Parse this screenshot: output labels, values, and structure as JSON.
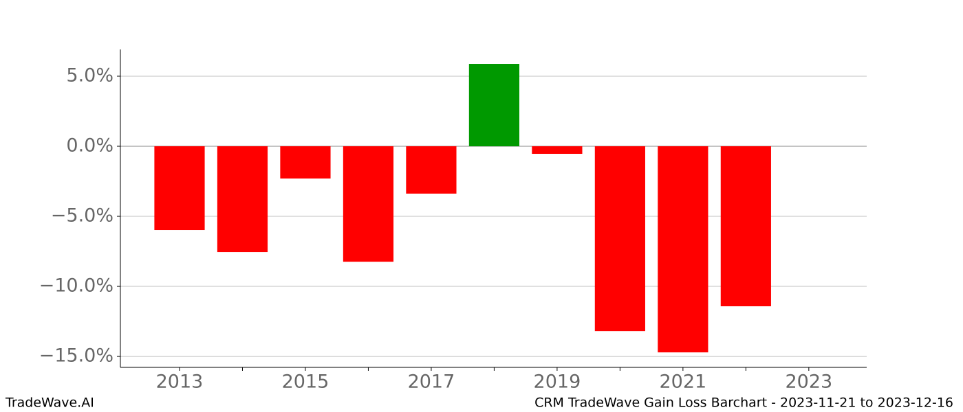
{
  "chart_data": {
    "type": "bar",
    "x": [
      2013,
      2014,
      2015,
      2016,
      2017,
      2018,
      2019,
      2020,
      2021,
      2022
    ],
    "values": [
      -5.98,
      -7.55,
      -2.3,
      -8.24,
      -3.38,
      5.88,
      -0.54,
      -13.19,
      -14.71,
      -11.42
    ],
    "colors": [
      "#ff0000",
      "#ff0000",
      "#ff0000",
      "#ff0000",
      "#ff0000",
      "#009900",
      "#ff0000",
      "#ff0000",
      "#ff0000",
      "#ff0000"
    ],
    "xlim": [
      2012.06,
      2023.92
    ],
    "xticks": [
      2013,
      2015,
      2017,
      2019,
      2021,
      2023
    ],
    "xticks_minor": [
      2014,
      2016,
      2018,
      2020,
      2022
    ],
    "ylim": [
      -15.78,
      6.91
    ],
    "yticks": [
      {
        "value": 5,
        "label": "5.0%"
      },
      {
        "value": 0,
        "label": "0.0%"
      },
      {
        "value": -5,
        "label": "−5.0%"
      },
      {
        "value": -10,
        "label": "−10.0%"
      },
      {
        "value": -15,
        "label": "−15.0%"
      }
    ],
    "grid": true
  },
  "footer": {
    "left": "TradeWave.AI",
    "right": "CRM TradeWave Gain Loss Barchart - 2023-11-21 to 2023-12-16"
  }
}
